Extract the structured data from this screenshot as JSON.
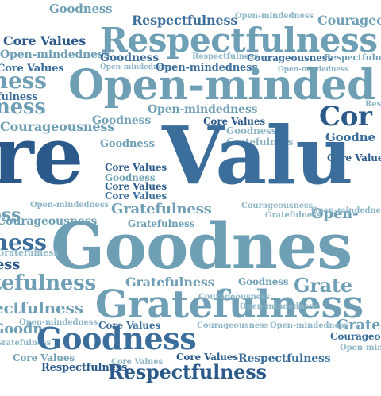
{
  "colors": {
    "dark": "#2b5a8a",
    "mid": "#3c6e9c",
    "light": "#6f9fb5",
    "pale": "#8fb6c7",
    "background": "#ffffff"
  },
  "words": [
    "Goodness",
    "Respectfulness",
    "Open-mindedness",
    "Courageous",
    "Core Values",
    "Respectfulness",
    "Open-mindedness",
    "Goodness",
    "Respectfulness",
    "Courageousness",
    "Respectfulness",
    "Core Values",
    "Open-mindedness",
    "Open-mindedness",
    "Open-mindedness",
    "ness",
    "Open-minded",
    "fulness",
    "ness",
    "Open-mindedness",
    "Cor",
    "Respectf",
    "Courageousness",
    "Goodness",
    "Core Values",
    "Goodness",
    "Goodne",
    "Gratefulness",
    "Core Values",
    "Goodness",
    "re",
    "Valu",
    "Core Values",
    "Goodness",
    "Core Values",
    "Core Values",
    "ess",
    "Open-mindedness",
    "Gratefulness",
    "Courageousness",
    "Gratefulness",
    "Open-",
    "ness",
    "Courageousness",
    "Gratefulness",
    "Open-mindedness",
    "Goodnes",
    "ess",
    "Gratefulness",
    "Goodness",
    "Gratefulness",
    "Grate",
    "tefulness",
    "Gratefulness",
    "Courageousness",
    "ectfulness",
    "Open-mindedness",
    "Gratefulness",
    "Open-mindedness",
    "Grate",
    "Core Values",
    "Courageousness",
    "Open-mindedness",
    "Courageousness",
    "Goodn",
    "Open-mindedness",
    "Goodness",
    "Core Values",
    "Respectfulness",
    "Core Values",
    "Respectfulness",
    "Core Values",
    "Respectfulness"
  ]
}
